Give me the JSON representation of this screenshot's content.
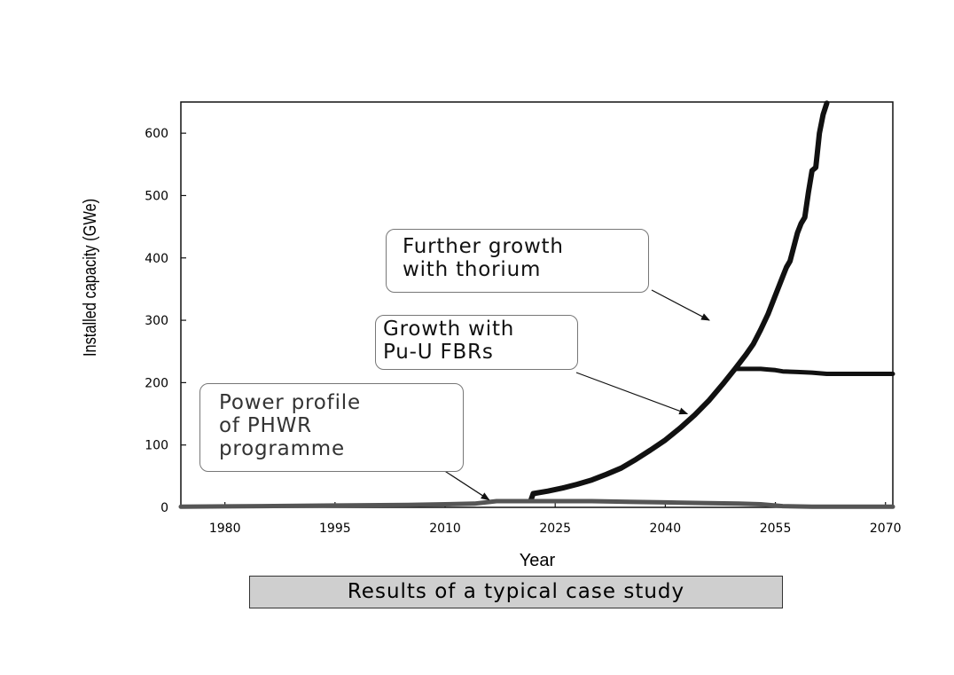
{
  "chart_data": {
    "type": "line",
    "xlabel": "Year",
    "ylabel": "Installed capacity (GWe)",
    "xlim": [
      1974,
      2071
    ],
    "ylim": [
      0,
      650
    ],
    "xticks": [
      1980,
      1995,
      2010,
      2025,
      2040,
      2055,
      2070
    ],
    "yticks": [
      0,
      100,
      200,
      300,
      400,
      500,
      600
    ],
    "grid": false,
    "series": [
      {
        "name": "",
        "color": "#111111",
        "x": [
          2021.7,
          2022,
          2024,
          2026,
          2028,
          2030,
          2032,
          2034,
          2036,
          2038,
          2040,
          2042,
          2044,
          2046,
          2048,
          2049.5,
          2051,
          2052,
          2053,
          2054,
          2055,
          2056,
          2056.5,
          2057,
          2058,
          2058.5,
          2059,
          2059.5,
          2060,
          2060.5,
          2061,
          2061.5,
          2062
        ],
        "values": [
          12,
          22,
          26,
          31,
          37,
          44,
          53,
          63,
          77,
          92,
          108,
          127,
          148,
          172,
          200,
          222,
          245,
          262,
          285,
          310,
          340,
          370,
          385,
          395,
          440,
          455,
          465,
          505,
          540,
          545,
          600,
          630,
          648
        ]
      },
      {
        "name": "",
        "color": "#111111",
        "x": [
          2049.5,
          2051,
          2052,
          2053,
          2054,
          2055,
          2056,
          2058,
          2060,
          2062,
          2064,
          2067,
          2071
        ],
        "values": [
          222,
          222,
          222,
          222,
          221,
          220,
          218,
          217,
          216,
          214,
          214,
          214,
          214
        ]
      },
      {
        "name": "",
        "color": "#555555",
        "x": [
          1974,
          1985,
          1995,
          2005,
          2010,
          2014,
          2017,
          2020,
          2025,
          2030,
          2035,
          2040,
          2045,
          2050,
          2053,
          2056,
          2060,
          2065,
          2071
        ],
        "values": [
          1,
          2,
          3,
          4,
          5,
          6,
          10,
          10,
          10,
          10,
          9,
          8,
          7,
          6,
          5,
          2,
          1,
          1,
          1
        ]
      }
    ],
    "annotations": [
      {
        "text": "Further growth\nwith thorium",
        "arrow_to": [
          2046,
          300
        ]
      },
      {
        "text": "Growth with\nPu-U FBRs",
        "arrow_to": [
          2043,
          150
        ]
      },
      {
        "text": "Power profile\nof PHWR\nprogramme",
        "arrow_to": [
          2016,
          12
        ]
      }
    ]
  },
  "caption": "Results of a typical case study"
}
